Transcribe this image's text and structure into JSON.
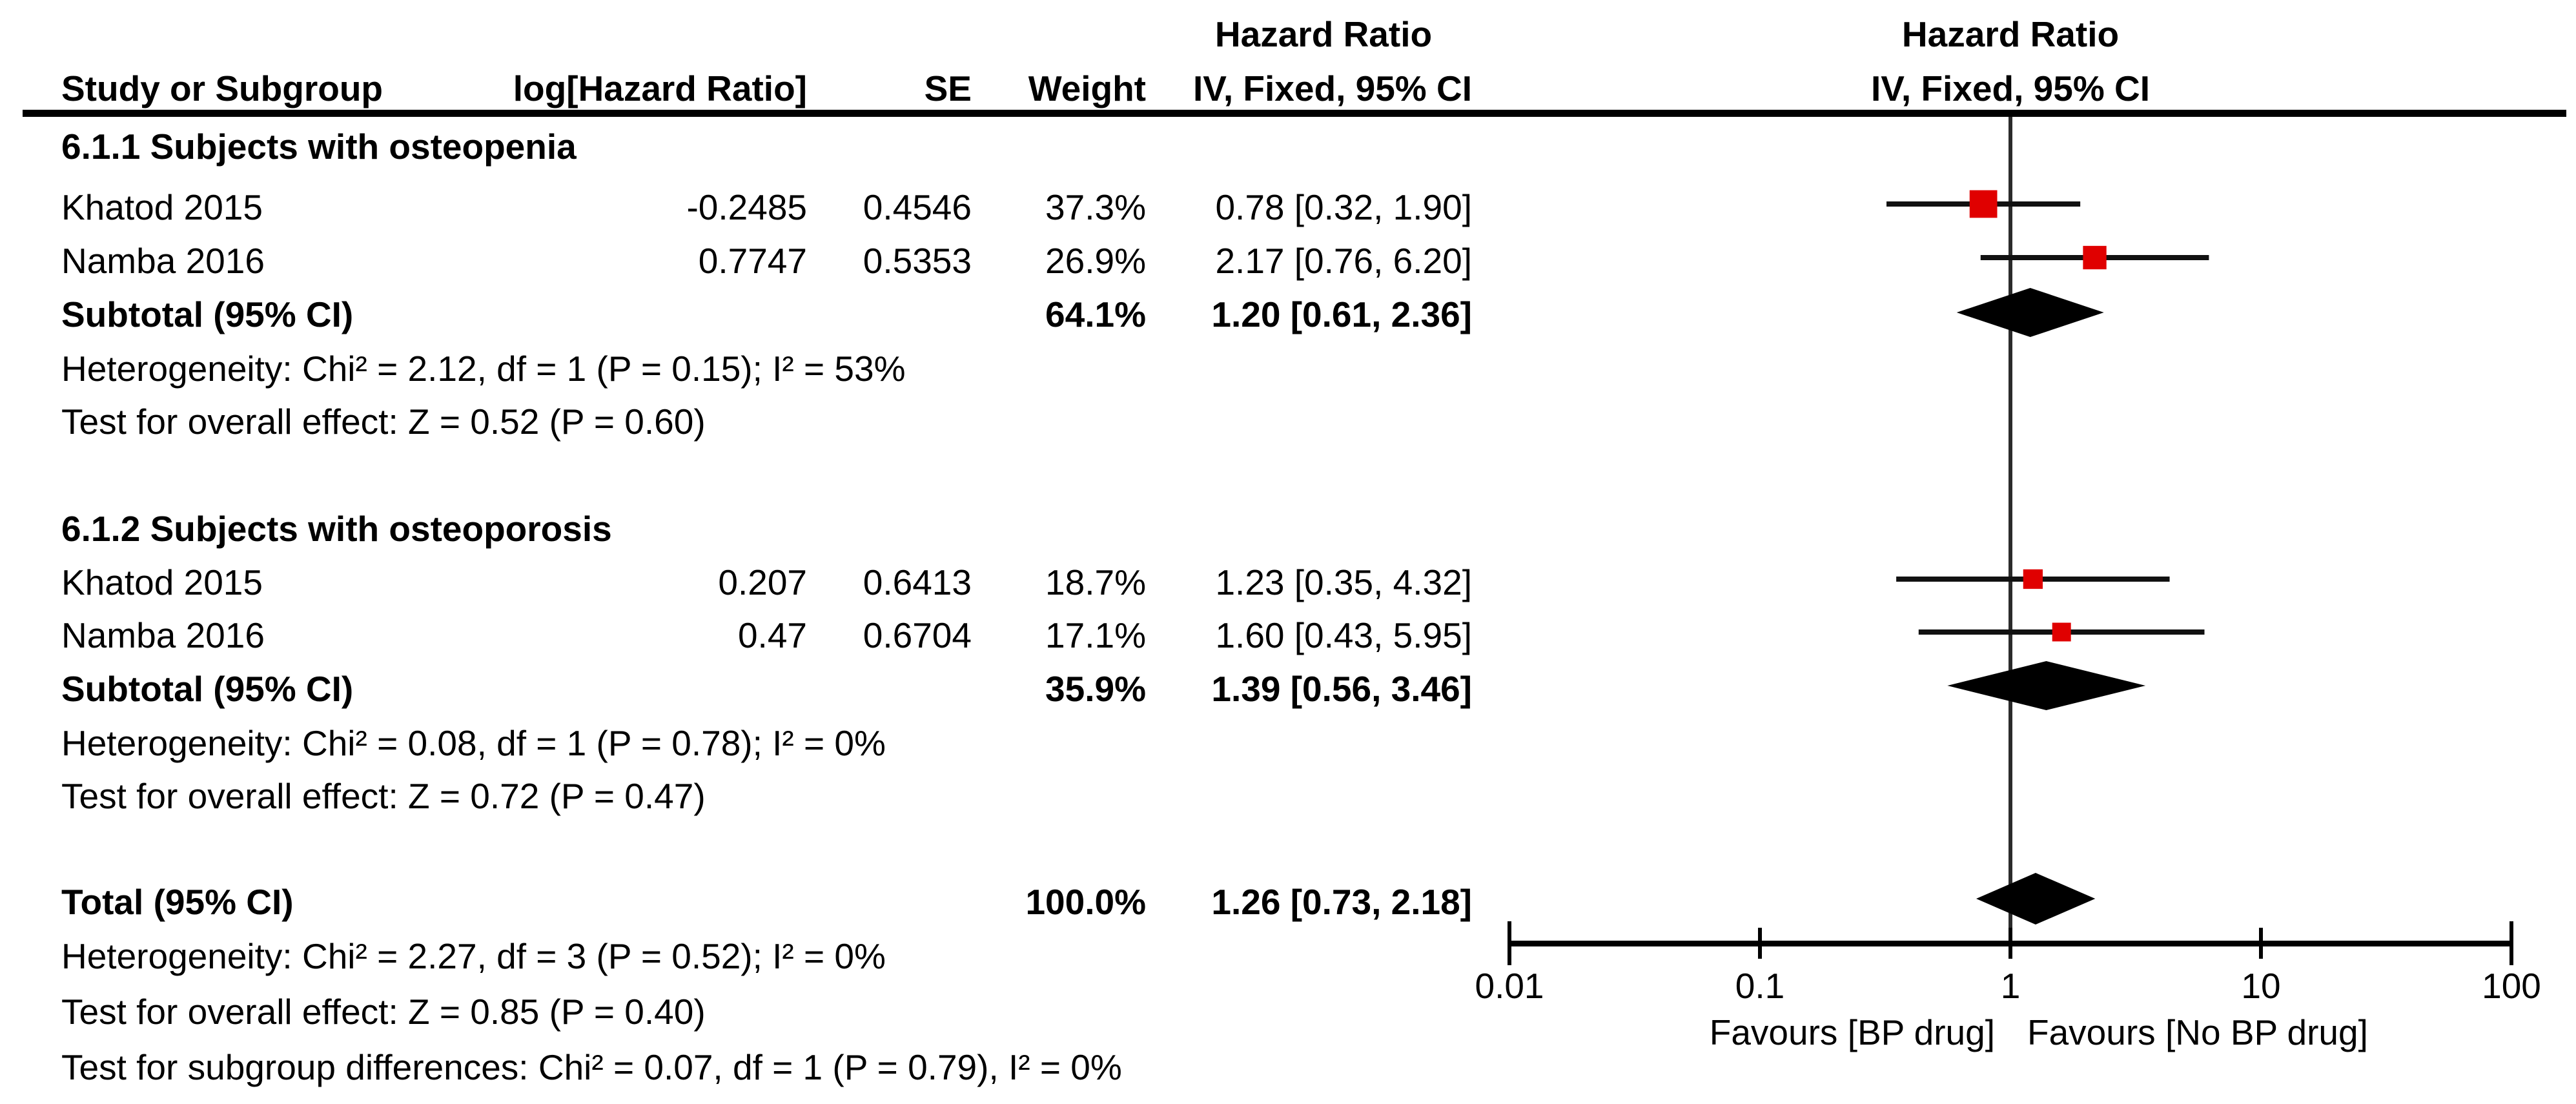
{
  "colors": {
    "marker_red": "#e00000",
    "text_black": "#000000"
  },
  "table": {
    "effect_col_header_line1": "Hazard Ratio",
    "effect_col_header_line2": "IV, Fixed, 95% CI",
    "plot_header_line1": "Hazard Ratio",
    "plot_header_line2": "IV, Fixed, 95% CI",
    "col_headers": {
      "study": "Study or Subgroup",
      "loghr": "log[Hazard Ratio]",
      "se": "SE",
      "weight": "Weight",
      "ci": "IV, Fixed, 95% CI"
    }
  },
  "groups": [
    {
      "title": "6.1.1 Subjects with osteopenia",
      "studies": [
        {
          "study": "Khatod 2015",
          "loghr": "-0.2485",
          "se": "0.4546",
          "weight": "37.3%",
          "ci": "0.78 [0.32, 1.90]"
        },
        {
          "study": "Namba 2016",
          "loghr": "0.7747",
          "se": "0.5353",
          "weight": "26.9%",
          "ci": "2.17 [0.76, 6.20]"
        }
      ],
      "subtotal": {
        "label": "Subtotal (95% CI)",
        "weight": "64.1%",
        "ci": "1.20 [0.61, 2.36]"
      },
      "heterogeneity": "Heterogeneity: Chi² = 2.12, df = 1 (P = 0.15); I² = 53%",
      "overall_effect": "Test for overall effect: Z = 0.52 (P = 0.60)"
    },
    {
      "title": "6.1.2 Subjects with osteoporosis",
      "studies": [
        {
          "study": "Khatod 2015",
          "loghr": "0.207",
          "se": "0.6413",
          "weight": "18.7%",
          "ci": "1.23 [0.35, 4.32]"
        },
        {
          "study": "Namba 2016",
          "loghr": "0.47",
          "se": "0.6704",
          "weight": "17.1%",
          "ci": "1.60 [0.43, 5.95]"
        }
      ],
      "subtotal": {
        "label": "Subtotal (95% CI)",
        "weight": "35.9%",
        "ci": "1.39 [0.56, 3.46]"
      },
      "heterogeneity": "Heterogeneity: Chi² = 0.08, df = 1 (P = 0.78); I² = 0%",
      "overall_effect": "Test for overall effect: Z = 0.72 (P = 0.47)"
    }
  ],
  "total": {
    "label": "Total (95% CI)",
    "weight": "100.0%",
    "ci": "1.26 [0.73, 2.18]"
  },
  "footer": {
    "heterogeneity": "Heterogeneity: Chi² = 2.27, df = 3 (P = 0.52); I² = 0%",
    "overall_effect": "Test for overall effect: Z = 0.85 (P = 0.40)",
    "subgroup_differences": "Test for subgroup differences: Chi² = 0.07, df = 1 (P = 0.79), I² = 0%"
  },
  "chart_data": {
    "type": "scatter",
    "subtype": "forest-plot",
    "title": "Hazard Ratio IV, Fixed, 95% CI",
    "x_scale": "log10",
    "xlim": [
      0.01,
      100
    ],
    "x_ticks": [
      0.01,
      0.1,
      1,
      10,
      100
    ],
    "null_line": 1,
    "favours_left": "Favours [BP drug]",
    "favours_right": "Favours [No BP drug]",
    "points": [
      {
        "row": "khatod_osteopenia",
        "label": "Khatod 2015",
        "hr": 0.78,
        "lo": 0.32,
        "hi": 1.9,
        "weight_pct": 37.3,
        "marker": "square"
      },
      {
        "row": "namba_osteopenia",
        "label": "Namba 2016",
        "hr": 2.17,
        "lo": 0.76,
        "hi": 6.2,
        "weight_pct": 26.9,
        "marker": "square"
      },
      {
        "row": "subtotal_osteopenia",
        "label": "Subtotal",
        "hr": 1.2,
        "lo": 0.61,
        "hi": 2.36,
        "weight_pct": 64.1,
        "marker": "diamond"
      },
      {
        "row": "khatod_osteoporosis",
        "label": "Khatod 2015",
        "hr": 1.23,
        "lo": 0.35,
        "hi": 4.32,
        "weight_pct": 18.7,
        "marker": "square"
      },
      {
        "row": "namba_osteoporosis",
        "label": "Namba 2016",
        "hr": 1.6,
        "lo": 0.43,
        "hi": 5.95,
        "weight_pct": 17.1,
        "marker": "square"
      },
      {
        "row": "subtotal_osteoporosis",
        "label": "Subtotal",
        "hr": 1.39,
        "lo": 0.56,
        "hi": 3.46,
        "weight_pct": 35.9,
        "marker": "diamond"
      },
      {
        "row": "total",
        "label": "Total",
        "hr": 1.26,
        "lo": 0.73,
        "hi": 2.18,
        "weight_pct": 100.0,
        "marker": "diamond"
      }
    ]
  }
}
